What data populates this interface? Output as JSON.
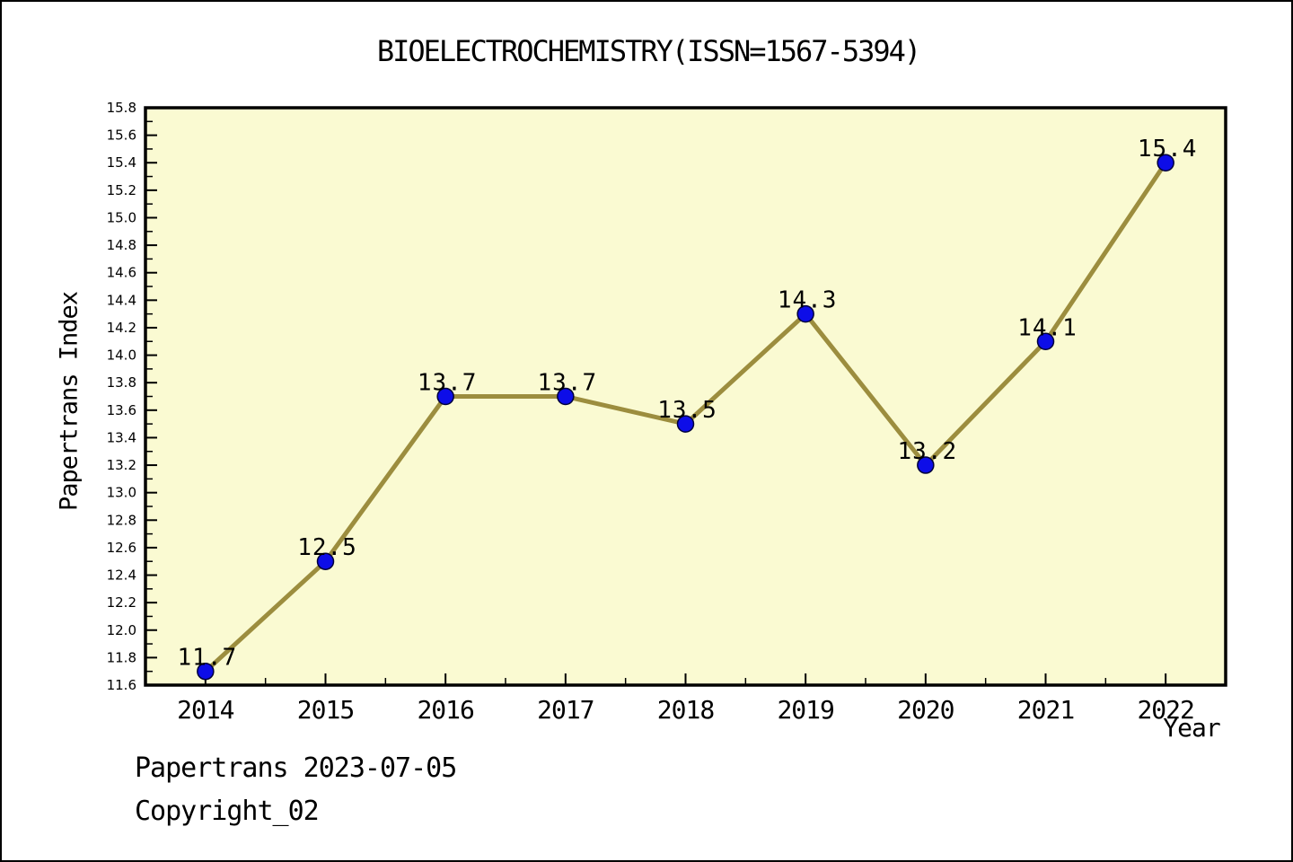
{
  "title": "BIOELECTROCHEMISTRY(ISSN=1567-5394)",
  "footer": {
    "line1": "Papertrans 2023-07-05",
    "line2": "Copyright_02"
  },
  "chart_data": {
    "type": "line",
    "title": "BIOELECTROCHEMISTRY(ISSN=1567-5394)",
    "xlabel": "Year",
    "ylabel": "Papertrans Index",
    "x": [
      2014,
      2015,
      2016,
      2017,
      2018,
      2019,
      2020,
      2021,
      2022
    ],
    "values": [
      11.7,
      12.5,
      13.7,
      13.7,
      13.5,
      14.3,
      13.2,
      14.1,
      15.4
    ],
    "point_labels": [
      "11.7",
      "12.5",
      "13.7",
      "13.7",
      "13.5",
      "14.3",
      "13.2",
      "14.1",
      "15.4"
    ],
    "xlim": [
      2013.5,
      2022.5
    ],
    "ylim": [
      11.6,
      15.8
    ],
    "y_major_step": 0.2,
    "y_minor_step": 0.1,
    "x_major_step": 1,
    "x_minor_step": 0.5,
    "grid": false,
    "legend": "none",
    "colors": {
      "line": "#9C8D3E",
      "marker_fill": "#0D0DE8",
      "marker_edge": "#00003A",
      "plot_bg": "#FAFAD2",
      "frame": "#000000",
      "text": "#000000"
    }
  }
}
